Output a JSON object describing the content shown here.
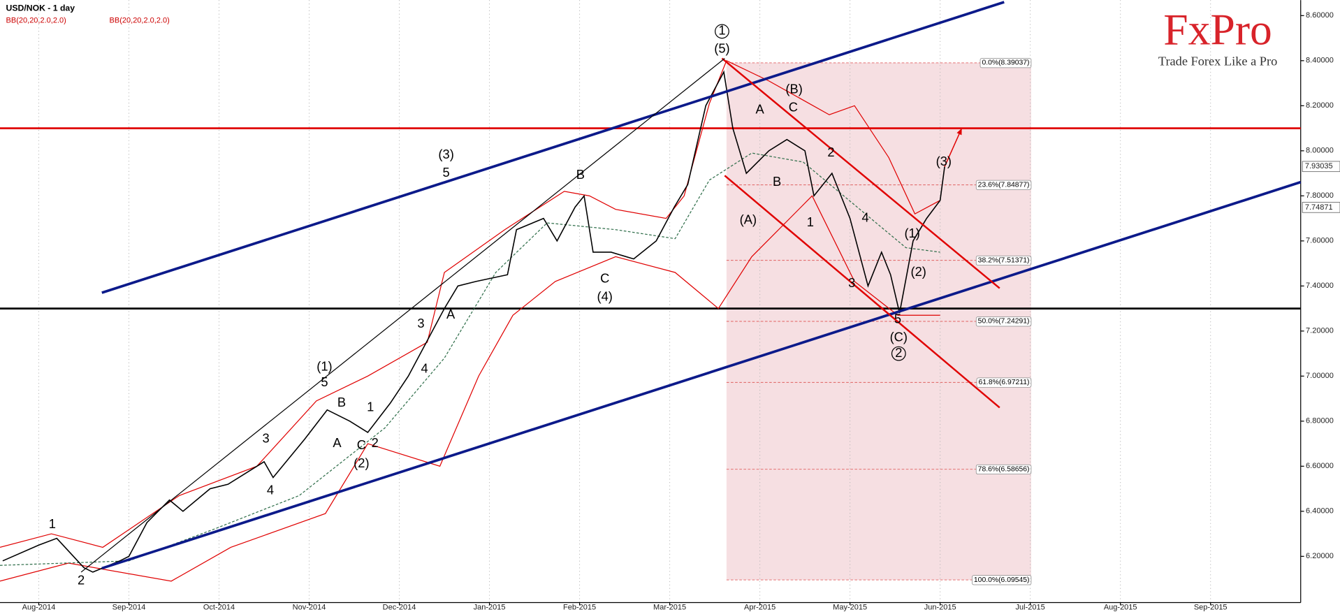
{
  "chart_data": {
    "type": "line",
    "title": "USD/NOK - 1 day",
    "indicators": [
      {
        "label": "BB(20,20,2.0,2.0)",
        "color": "#cc0000"
      },
      {
        "label": "BB(20,20,2.0,2.0)",
        "color": "#cc0000"
      }
    ],
    "xlim": [
      -0.43,
      14.0
    ],
    "ylim": [
      5.995,
      8.669
    ],
    "grid": "x",
    "xticks": [
      {
        "value": 0,
        "label": "Aug-2014"
      },
      {
        "value": 1,
        "label": "Sep-2014"
      },
      {
        "value": 2,
        "label": "Oct-2014"
      },
      {
        "value": 3,
        "label": "Nov-2014"
      },
      {
        "value": 4,
        "label": "Dec-2014"
      },
      {
        "value": 5,
        "label": "Jan-2015"
      },
      {
        "value": 6,
        "label": "Feb-2015"
      },
      {
        "value": 7,
        "label": "Mar-2015"
      },
      {
        "value": 8,
        "label": "Apr-2015"
      },
      {
        "value": 9,
        "label": "May-2015"
      },
      {
        "value": 10,
        "label": "Jun-2015"
      },
      {
        "value": 11,
        "label": "Jul-2015"
      },
      {
        "value": 12,
        "label": "Aug-2015"
      },
      {
        "value": 13,
        "label": "Sep-2015"
      }
    ],
    "yticks": [
      {
        "value": 6.2,
        "label": "6.20000"
      },
      {
        "value": 6.4,
        "label": "6.40000"
      },
      {
        "value": 6.6,
        "label": "6.60000"
      },
      {
        "value": 6.8,
        "label": "6.80000"
      },
      {
        "value": 7.0,
        "label": "7.00000"
      },
      {
        "value": 7.2,
        "label": "7.20000"
      },
      {
        "value": 7.4,
        "label": "7.40000"
      },
      {
        "value": 7.6,
        "label": "7.60000"
      },
      {
        "value": 7.8,
        "label": "7.80000"
      },
      {
        "value": 8.0,
        "label": "8.00000"
      },
      {
        "value": 8.2,
        "label": "8.20000"
      },
      {
        "value": 8.4,
        "label": "8.40000"
      },
      {
        "value": 8.6,
        "label": "8.60000"
      }
    ],
    "price": {
      "color": "#000000",
      "x": [
        -0.4,
        0.0,
        0.2,
        0.5,
        0.6,
        0.9,
        1.0,
        1.2,
        1.45,
        1.6,
        1.9,
        2.1,
        2.5,
        2.6,
        2.95,
        3.2,
        3.45,
        3.65,
        3.9,
        4.1,
        4.3,
        4.5,
        4.65,
        4.85,
        5.2,
        5.3,
        5.6,
        5.75,
        5.95,
        6.05,
        6.15,
        6.35,
        6.6,
        6.85,
        7.05,
        7.2,
        7.4,
        7.6,
        7.7,
        7.85,
        8.1,
        8.3,
        8.5,
        8.6,
        8.8,
        9.0,
        9.2,
        9.35,
        9.45,
        9.55,
        9.7,
        9.85,
        10.0,
        10.05
      ],
      "values": [
        6.18,
        6.25,
        6.28,
        6.15,
        6.13,
        6.18,
        6.2,
        6.35,
        6.45,
        6.4,
        6.5,
        6.52,
        6.62,
        6.55,
        6.72,
        6.85,
        6.8,
        6.75,
        6.88,
        7.0,
        7.15,
        7.3,
        7.4,
        7.42,
        7.45,
        7.65,
        7.7,
        7.6,
        7.75,
        7.8,
        7.55,
        7.55,
        7.52,
        7.6,
        7.75,
        7.85,
        8.2,
        8.35,
        8.1,
        7.9,
        8.0,
        8.05,
        8.0,
        7.8,
        7.9,
        7.7,
        7.4,
        7.55,
        7.45,
        7.28,
        7.6,
        7.7,
        7.78,
        7.93
      ]
    },
    "bands": [
      {
        "color": "#e00000",
        "dash": false,
        "x": [
          -0.43,
          0.14,
          0.71,
          1.56,
          2.42,
          3.08,
          3.65,
          4.31,
          4.5,
          5.17,
          5.83,
          6.11,
          6.4,
          6.96,
          7.16,
          7.44,
          7.63,
          8.1,
          8.77,
          9.05,
          9.43,
          9.72,
          10.0
        ],
        "values": [
          6.24,
          6.3,
          6.24,
          6.47,
          6.6,
          6.89,
          7.0,
          7.15,
          7.46,
          7.65,
          7.82,
          7.8,
          7.74,
          7.7,
          7.8,
          8.21,
          8.4,
          8.31,
          8.16,
          8.2,
          7.97,
          7.72,
          7.78
        ]
      },
      {
        "color": "#e00000",
        "dash": false,
        "x": [
          -0.43,
          0.33,
          1.47,
          2.13,
          3.18,
          3.65,
          4.45,
          4.88,
          5.26,
          5.73,
          6.4,
          7.06,
          7.54,
          7.91,
          8.58,
          9.05,
          9.53,
          10.0
        ],
        "values": [
          6.09,
          6.17,
          6.09,
          6.24,
          6.39,
          6.7,
          6.6,
          7.0,
          7.27,
          7.42,
          7.53,
          7.46,
          7.3,
          7.53,
          7.8,
          7.42,
          7.27,
          7.27
        ]
      },
      {
        "color": "#2f6e4a",
        "dash": true,
        "x": [
          -0.43,
          1.0,
          1.94,
          2.89,
          3.84,
          4.5,
          5.07,
          5.64,
          6.4,
          7.06,
          7.44,
          7.91,
          8.48,
          9.05,
          9.62,
          10.0
        ],
        "values": [
          6.16,
          6.18,
          6.32,
          6.47,
          6.77,
          7.08,
          7.46,
          7.68,
          7.65,
          7.61,
          7.87,
          7.99,
          7.95,
          7.76,
          7.57,
          7.55
        ]
      }
    ],
    "levels": [
      {
        "value": 8.1,
        "color": "#e00000"
      },
      {
        "value": 7.3,
        "color": "#000000"
      }
    ],
    "trend_lines": [
      {
        "color": "#0c1a8a",
        "width": 3,
        "points": [
          [
            0.7,
            7.37
          ],
          [
            10.71,
            8.66
          ]
        ]
      },
      {
        "color": "#0c1a8a",
        "width": 3,
        "points": [
          [
            0.7,
            6.147
          ],
          [
            14.0,
            7.861
          ]
        ]
      },
      {
        "color": "#e00000",
        "width": 2,
        "points": [
          [
            7.58,
            8.41
          ],
          [
            10.66,
            7.39
          ]
        ]
      },
      {
        "color": "#e00000",
        "width": 2,
        "points": [
          [
            7.61,
            7.89
          ],
          [
            10.66,
            6.86
          ]
        ]
      },
      {
        "color": "#000000",
        "width": 1,
        "points": [
          [
            0.47,
            6.13
          ],
          [
            7.61,
            8.41
          ]
        ]
      }
    ],
    "arrow": {
      "color": "#e00000",
      "points": [
        [
          10.05,
          7.93
        ],
        [
          10.24,
          8.1
        ]
      ]
    },
    "fib_range_x": [
      7.63,
      11.01
    ],
    "fib_levels": [
      {
        "value": 8.39037,
        "label": "0.0%(8.39037)"
      },
      {
        "value": 7.84877,
        "label": "23.6%(7.84877)"
      },
      {
        "value": 7.51371,
        "label": "38.2%(7.51371)"
      },
      {
        "value": 7.24291,
        "label": "50.0%(7.24291)"
      },
      {
        "value": 6.97211,
        "label": "61.8%(6.97211)"
      },
      {
        "value": 6.58656,
        "label": "78.6%(6.58656)"
      },
      {
        "value": 6.09545,
        "label": "100.0%(6.09545)"
      }
    ],
    "price_labels": [
      7.93035,
      7.74871
    ],
    "wave_labels": [
      {
        "text": "1",
        "x": 0.15,
        "y": 6.34
      },
      {
        "text": "2",
        "x": 0.47,
        "y": 6.09
      },
      {
        "text": "3",
        "x": 2.52,
        "y": 6.72
      },
      {
        "text": "4",
        "x": 2.57,
        "y": 6.49
      },
      {
        "text": "(1)",
        "x": 3.17,
        "y": 7.04
      },
      {
        "text": "5",
        "x": 3.17,
        "y": 6.97
      },
      {
        "text": "B",
        "x": 3.36,
        "y": 6.88
      },
      {
        "text": "A",
        "x": 3.31,
        "y": 6.7
      },
      {
        "text": "1",
        "x": 3.68,
        "y": 6.86
      },
      {
        "text": "C",
        "x": 3.58,
        "y": 6.69
      },
      {
        "text": "2",
        "x": 3.73,
        "y": 6.7
      },
      {
        "text": "(2)",
        "x": 3.58,
        "y": 6.61
      },
      {
        "text": "3",
        "x": 4.24,
        "y": 7.23
      },
      {
        "text": "4",
        "x": 4.28,
        "y": 7.03
      },
      {
        "text": "A",
        "x": 4.57,
        "y": 7.27
      },
      {
        "text": "(3)",
        "x": 4.52,
        "y": 7.98
      },
      {
        "text": "5",
        "x": 4.52,
        "y": 7.9
      },
      {
        "text": "B",
        "x": 6.01,
        "y": 7.89
      },
      {
        "text": "C",
        "x": 6.28,
        "y": 7.43
      },
      {
        "text": "(4)",
        "x": 6.28,
        "y": 7.35
      },
      {
        "text": "1",
        "x": 7.58,
        "y": 8.53,
        "circled": true
      },
      {
        "text": "(5)",
        "x": 7.58,
        "y": 8.45
      },
      {
        "text": "A",
        "x": 8.0,
        "y": 8.18
      },
      {
        "text": "(B)",
        "x": 8.38,
        "y": 8.27
      },
      {
        "text": "C",
        "x": 8.37,
        "y": 8.19
      },
      {
        "text": "B",
        "x": 8.19,
        "y": 7.86
      },
      {
        "text": "(A)",
        "x": 7.87,
        "y": 7.69
      },
      {
        "text": "2",
        "x": 8.79,
        "y": 7.99
      },
      {
        "text": "1",
        "x": 8.56,
        "y": 7.68
      },
      {
        "text": "4",
        "x": 9.17,
        "y": 7.7
      },
      {
        "text": "3",
        "x": 9.02,
        "y": 7.41
      },
      {
        "text": "5",
        "x": 9.53,
        "y": 7.25
      },
      {
        "text": "(C)",
        "x": 9.54,
        "y": 7.17
      },
      {
        "text": "2",
        "x": 9.54,
        "y": 7.1,
        "circled": true
      },
      {
        "text": "(1)",
        "x": 9.69,
        "y": 7.63
      },
      {
        "text": "(2)",
        "x": 9.76,
        "y": 7.46
      },
      {
        "text": "(3)",
        "x": 10.04,
        "y": 7.95
      }
    ]
  },
  "logo": {
    "brand": "FxPro",
    "tagline": "Trade Forex Like a Pro"
  }
}
